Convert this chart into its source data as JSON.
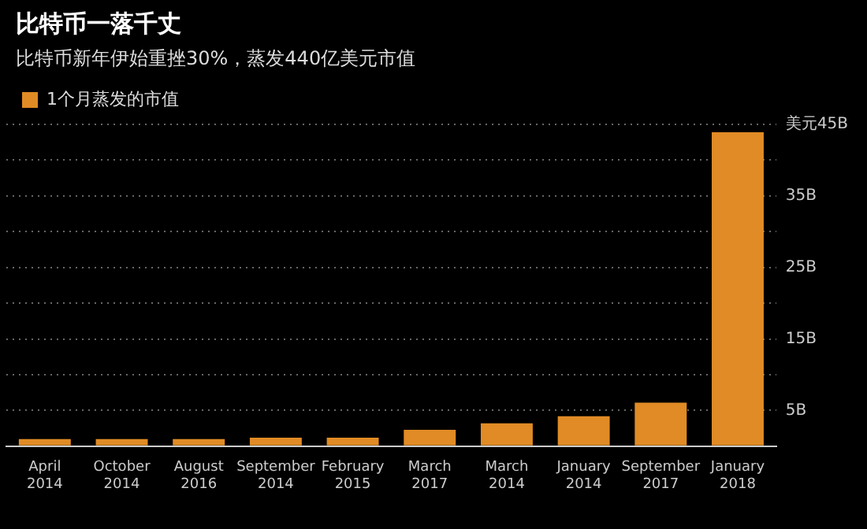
{
  "chart_data": {
    "type": "bar",
    "title": "比特币一落千丈",
    "subtitle": "比特币新年伊始重挫30%，蒸发440亿美元市值",
    "categories": [
      "April 2014",
      "October 2014",
      "August 2016",
      "September 2014",
      "February 2015",
      "March 2017",
      "March 2014",
      "January 2014",
      "September 2017",
      "January 2018"
    ],
    "series": [
      {
        "name": "1个月蒸发的市值",
        "color": "#e08b25",
        "values": [
          1.0,
          1.0,
          1.0,
          1.2,
          1.2,
          2.3,
          3.2,
          4.2,
          6.1,
          43.9
        ]
      }
    ],
    "ylim": [
      0,
      45
    ],
    "yticks": [
      {
        "value": 0,
        "label": null
      },
      {
        "value": 5,
        "label": "5B"
      },
      {
        "value": 10,
        "label": null
      },
      {
        "value": 15,
        "label": "15B"
      },
      {
        "value": 20,
        "label": null
      },
      {
        "value": 25,
        "label": "25B"
      },
      {
        "value": 30,
        "label": null
      },
      {
        "value": 35,
        "label": "35B"
      },
      {
        "value": 40,
        "label": null
      },
      {
        "value": 45,
        "label": "美元45B"
      }
    ],
    "grid": "y",
    "legend": "top left"
  }
}
